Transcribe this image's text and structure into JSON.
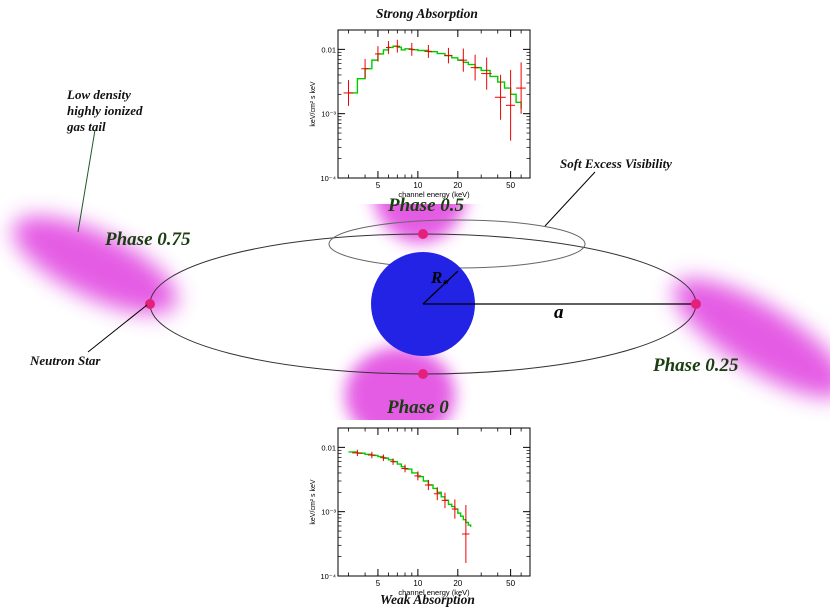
{
  "labels": {
    "phase_0": "Phase 0",
    "phase_025": "Phase 0.25",
    "phase_05": "Phase 0.5",
    "phase_075": "Phase 0.75",
    "neutron_star": "Neutron Star",
    "gas_tail_lines": [
      "Low density",
      "highly ionized",
      "gas tail"
    ],
    "soft_excess": "Soft Excess Visibility",
    "radius_symbol": "R",
    "radius_subscript": "*",
    "semi_major_axis": "a"
  },
  "colors": {
    "companion_star": "#2323e6",
    "gas_glow": "#e040e0",
    "neutron_star": "#e4207a",
    "phase_text": "#1a3d12",
    "model_line": "#00cc00",
    "data_points": "#ee0000"
  },
  "chart_data": [
    {
      "type": "line",
      "title": "Strong Absorption",
      "xlabel": "channel energy (keV)",
      "ylabel": "keV/cm² s keV",
      "x_scale": "log",
      "y_scale": "log",
      "xlim": [
        2.5,
        70
      ],
      "ylim": [
        0.0001,
        0.02
      ],
      "x_ticks": [
        5,
        10,
        20,
        50
      ],
      "y_ticks": [
        {
          "value": 0.01,
          "label": "0.01"
        },
        {
          "value": 0.001,
          "label": "10⁻³"
        },
        {
          "value": 0.0001,
          "label": "10⁻⁴"
        }
      ],
      "model_x": [
        3,
        3.5,
        4,
        4.5,
        5,
        5.5,
        6,
        6.5,
        7,
        7.5,
        8,
        9,
        10,
        12,
        14,
        16,
        18,
        20,
        22,
        24,
        27,
        30,
        35,
        40,
        45,
        50,
        55,
        60
      ],
      "model_y": [
        0.0021,
        0.0035,
        0.005,
        0.0068,
        0.0085,
        0.0098,
        0.0107,
        0.0112,
        0.0108,
        0.0098,
        0.0102,
        0.0099,
        0.0096,
        0.0092,
        0.0086,
        0.008,
        0.0074,
        0.0068,
        0.0063,
        0.0058,
        0.0052,
        0.0047,
        0.0038,
        0.0031,
        0.0025,
        0.002,
        0.0015,
        0.0012
      ],
      "points": [
        {
          "x": 3,
          "y": 0.0021,
          "xerr": 0.25,
          "yerr": 0.2
        },
        {
          "x": 4,
          "y": 0.005,
          "xerr": 0.25,
          "yerr": 0.15
        },
        {
          "x": 5,
          "y": 0.0085,
          "xerr": 0.25,
          "yerr": 0.12
        },
        {
          "x": 6,
          "y": 0.0107,
          "xerr": 0.25,
          "yerr": 0.1
        },
        {
          "x": 7,
          "y": 0.0112,
          "xerr": 0.35,
          "yerr": 0.1
        },
        {
          "x": 9,
          "y": 0.01,
          "xerr": 0.5,
          "yerr": 0.1
        },
        {
          "x": 12,
          "y": 0.0093,
          "xerr": 0.8,
          "yerr": 0.1
        },
        {
          "x": 17,
          "y": 0.008,
          "xerr": 1.2,
          "yerr": 0.12
        },
        {
          "x": 22,
          "y": 0.0068,
          "xerr": 1.5,
          "yerr": 0.18
        },
        {
          "x": 27,
          "y": 0.0052,
          "xerr": 2,
          "yerr": 0.2
        },
        {
          "x": 33,
          "y": 0.0042,
          "xerr": 3,
          "yerr": 0.25
        },
        {
          "x": 42,
          "y": 0.0018,
          "xerr": 4,
          "yerr": 0.35
        },
        {
          "x": 50,
          "y": 0.00135,
          "xerr": 4,
          "yerr": 0.55
        },
        {
          "x": 60,
          "y": 0.0025,
          "xerr": 5,
          "yerr": 0.4
        }
      ]
    },
    {
      "type": "line",
      "title": "Weak Absorption",
      "xlabel": "channel energy (keV)",
      "ylabel": "keV/cm² s keV",
      "x_scale": "log",
      "y_scale": "log",
      "xlim": [
        2.5,
        70
      ],
      "ylim": [
        0.0001,
        0.02
      ],
      "x_ticks": [
        5,
        10,
        20,
        50
      ],
      "y_ticks": [
        {
          "value": 0.01,
          "label": "0.01"
        },
        {
          "value": 0.001,
          "label": "10⁻³"
        },
        {
          "value": 0.0001,
          "label": "10⁻⁴"
        }
      ],
      "model_x": [
        3,
        3.5,
        4,
        4.5,
        5,
        5.5,
        6,
        6.5,
        7,
        7.5,
        8,
        9,
        10,
        11,
        12,
        13,
        14,
        15,
        16,
        17,
        18,
        19,
        20,
        21,
        22,
        23,
        24,
        25
      ],
      "model_y": [
        0.0085,
        0.0081,
        0.0078,
        0.0075,
        0.0072,
        0.0068,
        0.0064,
        0.006,
        0.0055,
        0.005,
        0.0046,
        0.004,
        0.0035,
        0.003,
        0.0026,
        0.0023,
        0.002,
        0.0017,
        0.0015,
        0.0013,
        0.0012,
        0.0011,
        0.00095,
        0.00085,
        0.00075,
        0.00068,
        0.00062,
        0.00058
      ],
      "points": [
        {
          "x": 3.5,
          "y": 0.0082,
          "xerr": 0.3,
          "yerr": 0.05
        },
        {
          "x": 4.5,
          "y": 0.0076,
          "xerr": 0.3,
          "yerr": 0.05
        },
        {
          "x": 5.5,
          "y": 0.0069,
          "xerr": 0.3,
          "yerr": 0.05
        },
        {
          "x": 6.5,
          "y": 0.006,
          "xerr": 0.3,
          "yerr": 0.05
        },
        {
          "x": 8,
          "y": 0.0047,
          "xerr": 0.5,
          "yerr": 0.06
        },
        {
          "x": 10,
          "y": 0.0036,
          "xerr": 0.6,
          "yerr": 0.07
        },
        {
          "x": 12,
          "y": 0.0026,
          "xerr": 0.7,
          "yerr": 0.08
        },
        {
          "x": 14,
          "y": 0.0019,
          "xerr": 0.8,
          "yerr": 0.1
        },
        {
          "x": 16,
          "y": 0.0015,
          "xerr": 0.9,
          "yerr": 0.12
        },
        {
          "x": 19,
          "y": 0.0011,
          "xerr": 1,
          "yerr": 0.15
        },
        {
          "x": 23,
          "y": 0.00045,
          "xerr": 1.5,
          "yerr": 0.45
        }
      ]
    }
  ]
}
